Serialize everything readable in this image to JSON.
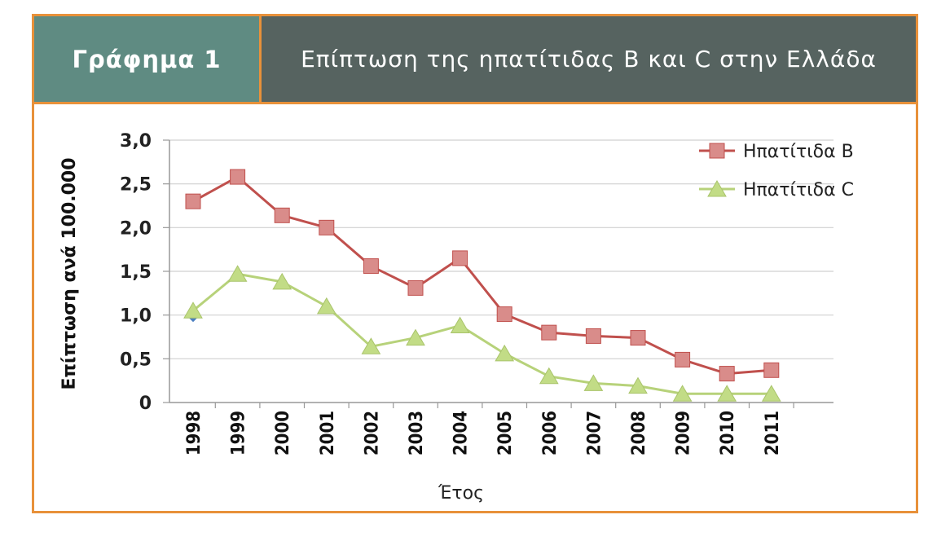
{
  "header": {
    "label": "Γράφημα 1",
    "title": "Επίπτωση της ηπατίτιδας B και C στην Ελλάδα"
  },
  "colors": {
    "frame": "#e8913a",
    "header_left_bg": "#5f8b82",
    "header_right_bg": "#566360",
    "series_b": "#c0504d",
    "series_b_marker": "#d98c8a",
    "series_c": "#b7d27a",
    "series_c_marker": "#c2dc86",
    "grid": "#d0d0d0",
    "outlier_marker": "#4a7fc1"
  },
  "chart_data": {
    "type": "line",
    "title": "",
    "xlabel": "Έτος",
    "ylabel": "Επίπτωση ανά 100.000",
    "categories": [
      "1998",
      "1999",
      "2000",
      "2001",
      "2002",
      "2003",
      "2004",
      "2005",
      "2006",
      "2007",
      "2008",
      "2009",
      "2010",
      "2011"
    ],
    "y_ticks": [
      "0",
      "0,5",
      "1,0",
      "1,5",
      "2,0",
      "2,5",
      "3,0"
    ],
    "ylim": [
      0,
      3
    ],
    "grid": true,
    "legend_position": "top-right",
    "series": [
      {
        "name": "Ηπατίτιδα B",
        "marker": "square",
        "values": [
          2.3,
          2.58,
          2.14,
          2.0,
          1.56,
          1.31,
          1.65,
          1.01,
          0.8,
          0.76,
          0.74,
          0.49,
          0.33,
          0.37
        ]
      },
      {
        "name": "Ηπατίτιδα C",
        "marker": "triangle",
        "values": [
          1.05,
          1.47,
          1.38,
          1.1,
          0.64,
          0.74,
          0.88,
          0.56,
          0.3,
          0.22,
          0.19,
          0.1,
          0.1,
          0.1
        ]
      }
    ]
  }
}
